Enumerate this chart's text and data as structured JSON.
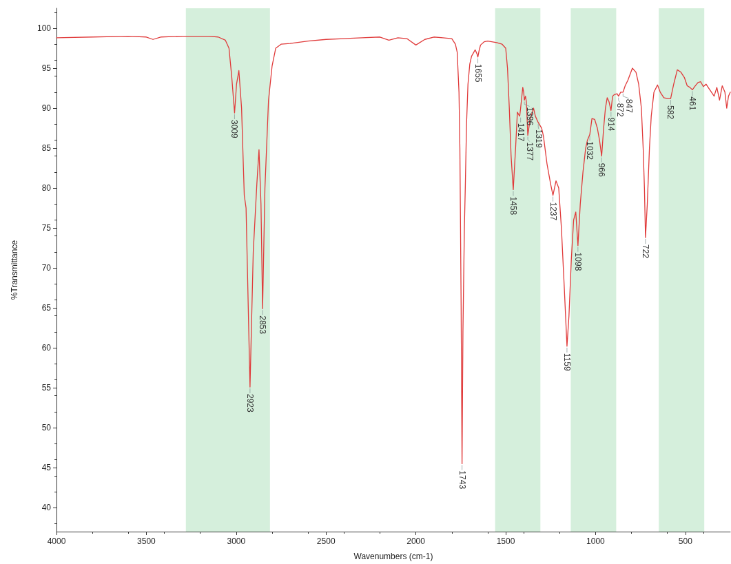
{
  "chart_data": {
    "type": "line",
    "xlabel": "Wavenumbers (cm-1)",
    "ylabel": "%Transmittance",
    "xlim": [
      4000,
      250
    ],
    "ylim": [
      37,
      102.5
    ],
    "xticks": [
      4000,
      3500,
      3000,
      2500,
      2000,
      1500,
      1000,
      500
    ],
    "yticks": [
      40,
      45,
      50,
      55,
      60,
      65,
      70,
      75,
      80,
      85,
      90,
      95,
      100
    ],
    "marker": "none",
    "line_style": "solid",
    "bands": [
      {
        "axis": "x",
        "from": 3280,
        "to": 2812,
        "color": "#d5efdc"
      },
      {
        "axis": "x",
        "from": 1559,
        "to": 1307,
        "color": "#d5efdc"
      },
      {
        "axis": "x",
        "from": 1138,
        "to": 885,
        "color": "#d5efdc"
      },
      {
        "axis": "x",
        "from": 648,
        "to": 395,
        "color": "#d5efdc"
      }
    ],
    "series": [
      {
        "color": "#e03a3a",
        "x": [
          4000,
          3800,
          3600,
          3500,
          3463,
          3420,
          3300,
          3150,
          3100,
          3060,
          3040,
          3025,
          3009,
          2998,
          2985,
          2970,
          2955,
          2945,
          2923,
          2905,
          2885,
          2873,
          2862,
          2853,
          2840,
          2820,
          2800,
          2780,
          2750,
          2700,
          2600,
          2500,
          2400,
          2300,
          2200,
          2150,
          2100,
          2050,
          2000,
          1950,
          1900,
          1850,
          1800,
          1780,
          1770,
          1760,
          1755,
          1748,
          1743,
          1738,
          1730,
          1725,
          1718,
          1710,
          1700,
          1690,
          1670,
          1660,
          1655,
          1648,
          1640,
          1620,
          1600,
          1550,
          1520,
          1500,
          1490,
          1480,
          1470,
          1458,
          1445,
          1435,
          1428,
          1422,
          1417,
          1405,
          1400,
          1396,
          1390,
          1385,
          1377,
          1365,
          1355,
          1345,
          1335,
          1319,
          1300,
          1290,
          1270,
          1250,
          1237,
          1220,
          1205,
          1190,
          1175,
          1159,
          1148,
          1135,
          1122,
          1110,
          1098,
          1085,
          1070,
          1055,
          1045,
          1032,
          1020,
          1005,
          990,
          978,
          966,
          955,
          945,
          935,
          925,
          914,
          905,
          895,
          880,
          872,
          860,
          847,
          835,
          820,
          795,
          775,
          760,
          745,
          735,
          728,
          722,
          712,
          700,
          690,
          675,
          655,
          640,
          620,
          600,
          582,
          565,
          545,
          525,
          505,
          490,
          475,
          461,
          445,
          430,
          415,
          400,
          385,
          370,
          355,
          340,
          325,
          310,
          295,
          280,
          270,
          260,
          250
        ],
        "values": [
          98.8,
          98.9,
          99.0,
          98.9,
          98.6,
          98.9,
          99.0,
          99.0,
          98.9,
          98.5,
          97.5,
          94.0,
          89.4,
          93.0,
          94.7,
          90.0,
          79.1,
          77.5,
          55.1,
          72.0,
          80.5,
          84.8,
          78.0,
          64.9,
          80.0,
          91.0,
          95.3,
          97.5,
          98.0,
          98.1,
          98.4,
          98.6,
          98.7,
          98.8,
          98.9,
          98.5,
          98.8,
          98.7,
          97.9,
          98.6,
          98.9,
          98.8,
          98.7,
          98.0,
          97.0,
          92.0,
          85.0,
          65.0,
          45.5,
          62.0,
          75.0,
          80.0,
          88.0,
          93.0,
          95.5,
          96.5,
          97.3,
          96.8,
          96.4,
          97.2,
          97.9,
          98.3,
          98.4,
          98.2,
          98.0,
          97.5,
          95.0,
          90.0,
          84.0,
          79.8,
          85.0,
          89.5,
          89.2,
          89.0,
          90.0,
          92.6,
          92.0,
          91.0,
          91.5,
          90.8,
          86.6,
          88.5,
          89.3,
          90.0,
          89.0,
          88.2,
          87.5,
          86.5,
          83.0,
          80.5,
          79.1,
          80.9,
          80.0,
          75.0,
          68.0,
          60.2,
          64.0,
          71.0,
          76.0,
          77.0,
          72.8,
          78.0,
          82.0,
          85.0,
          86.0,
          86.7,
          88.7,
          88.6,
          87.5,
          86.0,
          84.0,
          87.5,
          90.0,
          91.3,
          90.8,
          89.7,
          91.5,
          91.7,
          91.8,
          91.5,
          92.0,
          92.0,
          92.8,
          93.5,
          95.0,
          94.5,
          93.0,
          90.0,
          85.0,
          80.0,
          73.8,
          78.0,
          85.0,
          89.0,
          92.0,
          92.9,
          92.0,
          91.3,
          91.2,
          91.2,
          93.0,
          94.8,
          94.5,
          93.8,
          92.8,
          92.6,
          92.3,
          92.8,
          93.2,
          93.3,
          92.7,
          93.0,
          92.5,
          92.0,
          91.5,
          92.6,
          91.0,
          92.8,
          92.0,
          90.0,
          91.5,
          92.0
        ]
      }
    ],
    "annotations": [
      {
        "text": "3009",
        "x": 3009,
        "y": 89.4
      },
      {
        "text": "2923",
        "x": 2923,
        "y": 55.1
      },
      {
        "text": "2853",
        "x": 2853,
        "y": 64.9
      },
      {
        "text": "1743",
        "x": 1743,
        "y": 45.5
      },
      {
        "text": "1655",
        "x": 1655,
        "y": 96.4
      },
      {
        "text": "1458",
        "x": 1458,
        "y": 79.8
      },
      {
        "text": "1417",
        "x": 1417,
        "y": 89.0
      },
      {
        "text": "1396",
        "x": 1396,
        "y": 91.0
      },
      {
        "text": "1377",
        "x": 1377,
        "y": 86.6
      },
      {
        "text": "1319",
        "x": 1319,
        "y": 88.2
      },
      {
        "text": "1237",
        "x": 1237,
        "y": 79.1
      },
      {
        "text": "1159",
        "x": 1159,
        "y": 60.2
      },
      {
        "text": "1098",
        "x": 1098,
        "y": 72.8
      },
      {
        "text": "1032",
        "x": 1032,
        "y": 86.7
      },
      {
        "text": "966",
        "x": 966,
        "y": 84.0
      },
      {
        "text": "914",
        "x": 914,
        "y": 89.7
      },
      {
        "text": "872",
        "x": 872,
        "y": 91.5
      },
      {
        "text": "847",
        "x": 847,
        "y": 92.0
      },
      {
        "text": "722",
        "x": 722,
        "y": 73.8
      },
      {
        "text": "582",
        "x": 582,
        "y": 91.2
      },
      {
        "text": "461",
        "x": 461,
        "y": 92.3
      }
    ]
  }
}
